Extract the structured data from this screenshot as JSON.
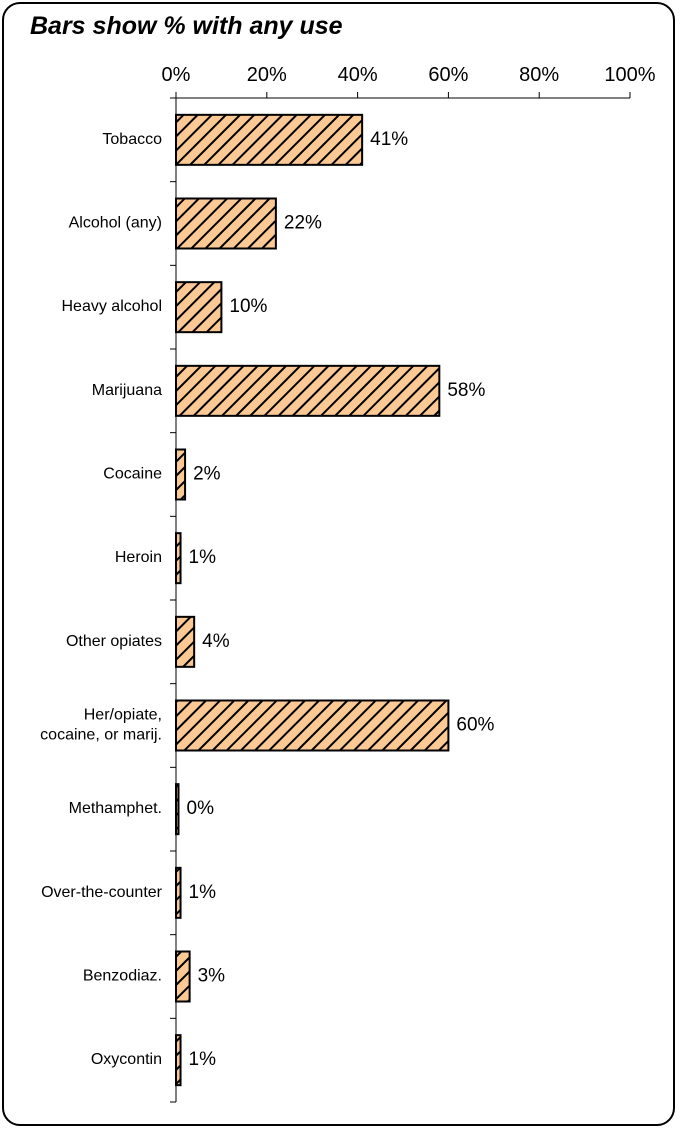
{
  "chart_data": {
    "type": "bar",
    "orientation": "horizontal",
    "title": "Bars show % with any use",
    "xlim": [
      0,
      100
    ],
    "x_ticks": [
      "0%",
      "20%",
      "40%",
      "60%",
      "80%",
      "100%"
    ],
    "x_axis_position": "top",
    "grid": false,
    "legend": "none",
    "categories": [
      [
        "Tobacco"
      ],
      [
        "Alcohol  (any)"
      ],
      [
        "Heavy alcohol"
      ],
      [
        "Marijuana"
      ],
      [
        "Cocaine"
      ],
      [
        "Heroin"
      ],
      [
        "Other opiates"
      ],
      [
        "Her/opiate,",
        "cocaine, or marij."
      ],
      [
        "Methamphet."
      ],
      [
        "Over-the-counter"
      ],
      [
        "Benzodiaz."
      ],
      [
        "Oxycontin"
      ]
    ],
    "values": [
      41,
      22,
      10,
      58,
      2,
      1,
      4,
      60,
      0,
      1,
      3,
      1
    ],
    "data_labels": [
      "41%",
      "22%",
      "10%",
      "58%",
      "2%",
      "1%",
      "4%",
      "60%",
      "0%",
      "1%",
      "3%",
      "1%"
    ],
    "bar_fill": "#fcc994",
    "bar_hatch": "#000000"
  }
}
